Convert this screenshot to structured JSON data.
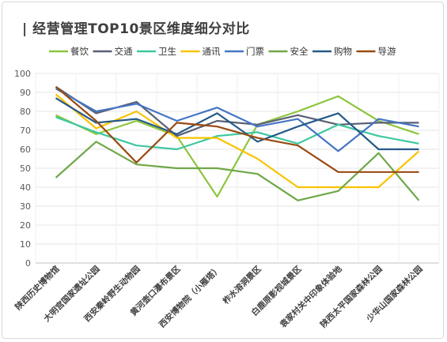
{
  "title": "| 经营管理TOP10景区维度细分对比",
  "chart_data": {
    "type": "line",
    "title": "经营管理TOP10景区维度细分对比",
    "ylim": [
      0,
      100
    ],
    "yticks": [
      0,
      10,
      20,
      30,
      40,
      50,
      60,
      70,
      80,
      90,
      100
    ],
    "grid": true,
    "legend_position": "top",
    "categories": [
      "陕西历史博物馆",
      "大明宫国家遗址公园",
      "西安秦岭野生动物园",
      "黄河壶口瀑布景区",
      "西安博物院（小雁塔）",
      "柞水溶洞景区",
      "白鹿原影视城景区",
      "袁家村关中印象体验地",
      "陕西太平国家森林公园",
      "少华山国家森林公园"
    ],
    "series": [
      {
        "name": "餐饮",
        "color": "#8dc63f",
        "values": [
          78,
          68,
          75,
          67,
          35,
          73,
          80,
          88,
          75,
          68
        ]
      },
      {
        "name": "交通",
        "color": "#595f73",
        "values": [
          93,
          79,
          85,
          67,
          75,
          73,
          78,
          73,
          74,
          74
        ]
      },
      {
        "name": "卫生",
        "color": "#3cc8a0",
        "values": [
          77,
          69,
          62,
          60,
          67,
          69,
          63,
          73,
          67,
          63
        ]
      },
      {
        "name": "通讯",
        "color": "#fbc200",
        "values": [
          89,
          71,
          80,
          66,
          66,
          55,
          40,
          40,
          40,
          59
        ]
      },
      {
        "name": "门票",
        "color": "#4575c4",
        "values": [
          92,
          80,
          84,
          75,
          82,
          72,
          76,
          59,
          76,
          72
        ]
      },
      {
        "name": "安全",
        "color": "#6fa848",
        "values": [
          45,
          64,
          52,
          50,
          50,
          47,
          33,
          38,
          58,
          33
        ]
      },
      {
        "name": "购物",
        "color": "#265a88",
        "values": [
          87,
          74,
          76,
          68,
          79,
          64,
          72,
          79,
          60,
          60
        ]
      },
      {
        "name": "导游",
        "color": "#9a4a10",
        "values": [
          93,
          75,
          53,
          74,
          72,
          66,
          62,
          48,
          48,
          48
        ]
      }
    ]
  }
}
